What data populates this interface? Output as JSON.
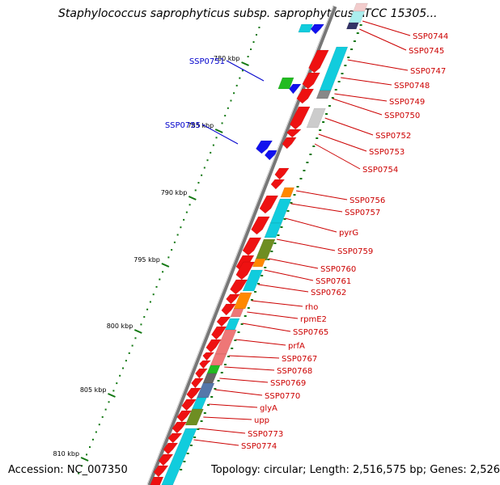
{
  "title": "Staphylococcus saprophyticus subsp. saprophyticus ATCC 15305...",
  "footer": {
    "accession": "Accession: NC_007350",
    "topology": "Topology: circular; Length: 2,516,575 bp; Genes: 2,526"
  },
  "colors": {
    "forward_label": "#cc0000",
    "reverse_label": "#0000cc",
    "backbone": "#777777",
    "tick": "#117711",
    "gene_red": "#ee1111",
    "gene_cyan": "#11ccdd",
    "gene_orange": "#ff8800",
    "gene_olive": "#6e8e22",
    "gene_pink": "#ee7777",
    "gene_green": "#22bb22",
    "gene_blue": "#1111ee",
    "gene_steelblue": "#5577aa",
    "gene_grey": "#888888"
  },
  "ticks": [
    "780 kbp",
    "785 kbp",
    "790 kbp",
    "795 kbp",
    "800 kbp",
    "805 kbp",
    "810 kbp"
  ],
  "forward_labels": [
    "SSP0744",
    "SSP0745",
    "SSP0747",
    "SSP0748",
    "SSP0749",
    "SSP0750",
    "SSP0752",
    "SSP0753",
    "SSP0754",
    "SSP0756",
    "SSP0757",
    "pyrG",
    "SSP0759",
    "SSP0760",
    "SSP0761",
    "SSP0762",
    "rho",
    "rpmE2",
    "SSP0765",
    "prfA",
    "SSP0767",
    "SSP0768",
    "SSP0769",
    "SSP0770",
    "glyA",
    "upp",
    "SSP0773",
    "SSP0774"
  ],
  "reverse_labels": [
    "SSP0751",
    "SSP0755"
  ]
}
